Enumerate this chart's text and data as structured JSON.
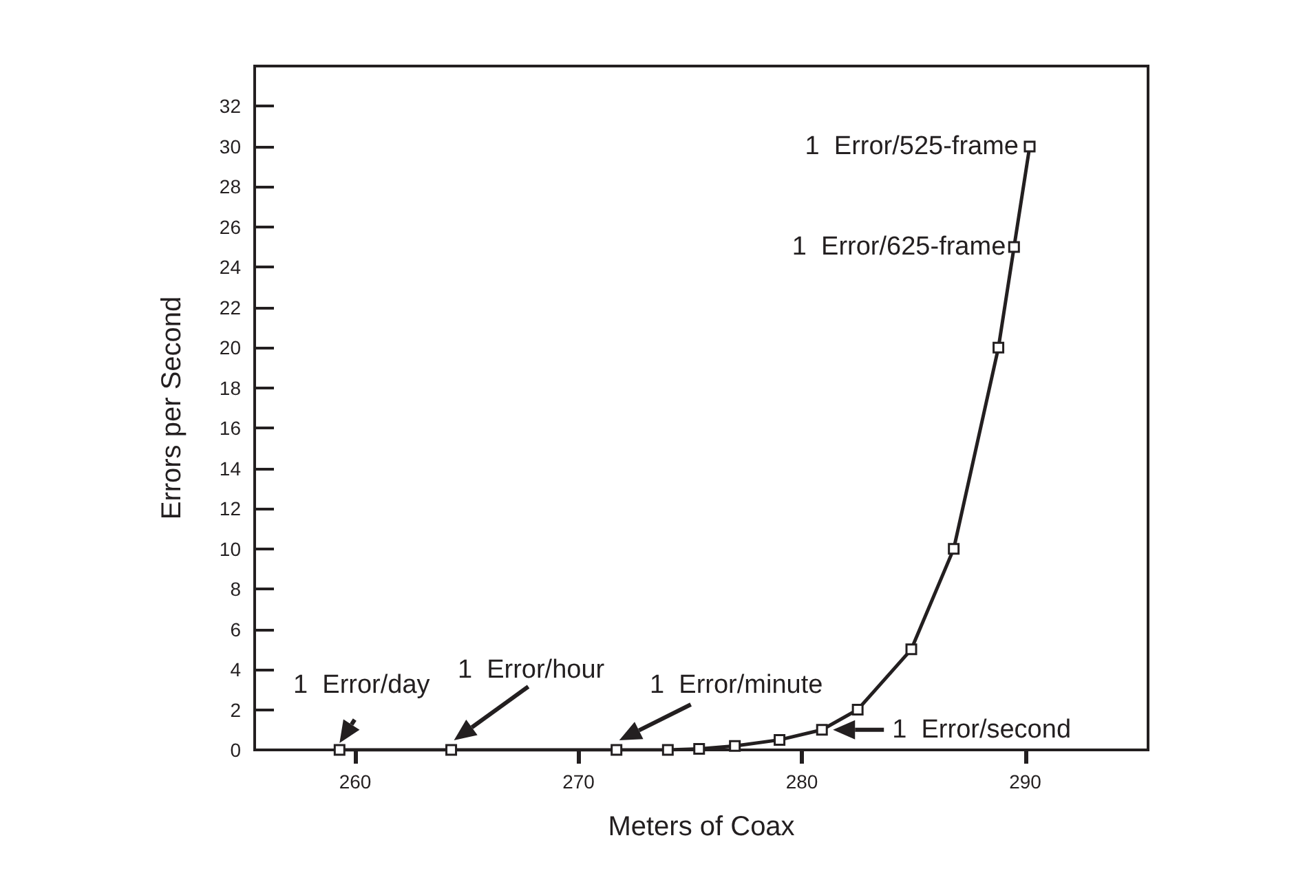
{
  "chart_data": {
    "type": "line",
    "xlabel": "Meters of Coax",
    "ylabel": "Errors per Second",
    "x": [
      259.3,
      264.3,
      271.7,
      274,
      275.4,
      277,
      279,
      280.9,
      282.5,
      284.9,
      286.8,
      288.8,
      289.5,
      290.2
    ],
    "series": [
      {
        "color": "#231f20",
        "values": [
          0,
          0,
          0,
          0,
          0.05,
          0.2,
          0.5,
          1,
          2,
          5,
          10,
          20,
          25,
          30
        ]
      }
    ],
    "xlim": [
      255.5,
      295.5
    ],
    "xticks": [
      260,
      270,
      280,
      290
    ],
    "ylim": [
      0,
      34
    ],
    "yticks": [
      0,
      2,
      4,
      6,
      8,
      10,
      12,
      14,
      16,
      18,
      20,
      22,
      24,
      26,
      28,
      30,
      32
    ],
    "marker": "square",
    "line_style": "solid",
    "grid": false,
    "annotations": [
      {
        "text": "1  Error/day",
        "x": 259.3,
        "y": 0
      },
      {
        "text": "1  Error/hour",
        "x": 264.3,
        "y": 0
      },
      {
        "text": "1  Error/minute",
        "x": 271.7,
        "y": 0
      },
      {
        "text": "1  Error/second",
        "x": 280.9,
        "y": 1
      },
      {
        "text": "1  Error/525-frame",
        "x": 290.2,
        "y": 30
      },
      {
        "text": "1  Error/625-frame",
        "x": 289.5,
        "y": 25
      }
    ]
  }
}
